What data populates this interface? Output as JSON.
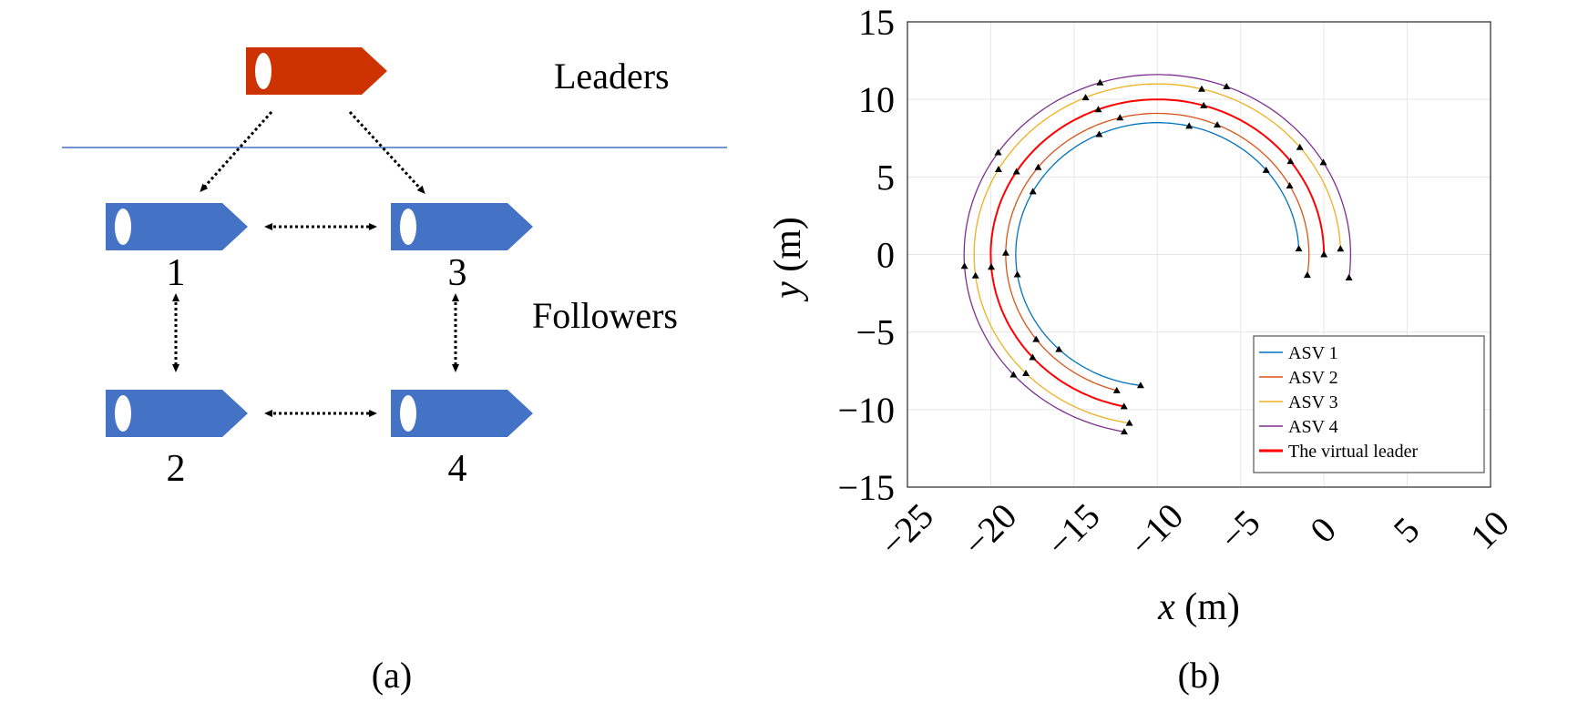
{
  "panel_a": {
    "caption": "(a)",
    "leaders_label": "Leaders",
    "followers_label": "Followers",
    "leader_color": "#cc3300",
    "follower_color": "#4472c4",
    "followers": [
      "1",
      "3",
      "2",
      "4"
    ]
  },
  "panel_b": {
    "caption": "(b)"
  },
  "chart_data": {
    "type": "line",
    "xlabel": "x (m)",
    "ylabel": "y (m)",
    "xlim": [
      -25,
      10
    ],
    "ylim": [
      -15,
      15
    ],
    "xticks": [
      "−25",
      "−20",
      "−15",
      "−10",
      "−5",
      "0",
      "5",
      "10"
    ],
    "yticks": [
      "15",
      "10",
      "5",
      "0",
      "−5",
      "−10",
      "−15"
    ],
    "grid": true,
    "legend_position": "bottom-right",
    "series": [
      {
        "name": "ASV 1",
        "color": "#0072bd",
        "center": [
          -10,
          0
        ],
        "radius": 8.5,
        "start": [
          -1,
          0.4
        ],
        "end": [
          -11,
          -8.4
        ]
      },
      {
        "name": "ASV 2",
        "color": "#d95319",
        "center": [
          -10,
          0
        ],
        "radius": 9.1,
        "start": [
          -0.5,
          -1.4
        ],
        "end": [
          -12.5,
          -9.0
        ]
      },
      {
        "name": "ASV 3",
        "color": "#edb120",
        "center": [
          -10,
          0
        ],
        "radius": 11.0,
        "start": [
          2,
          0.4
        ],
        "end": [
          -11.7,
          -11.0
        ]
      },
      {
        "name": "ASV 4",
        "color": "#7e2f8e",
        "center": [
          -10,
          0
        ],
        "radius": 11.6,
        "start": [
          1.5,
          -1.5
        ],
        "end": [
          -12,
          -11.5
        ]
      },
      {
        "name": "The virtual leader",
        "color": "#ff0000",
        "center": [
          -10,
          0
        ],
        "radius": 10.0,
        "start": [
          0,
          0
        ],
        "end": [
          -12,
          -9.8
        ]
      }
    ]
  }
}
